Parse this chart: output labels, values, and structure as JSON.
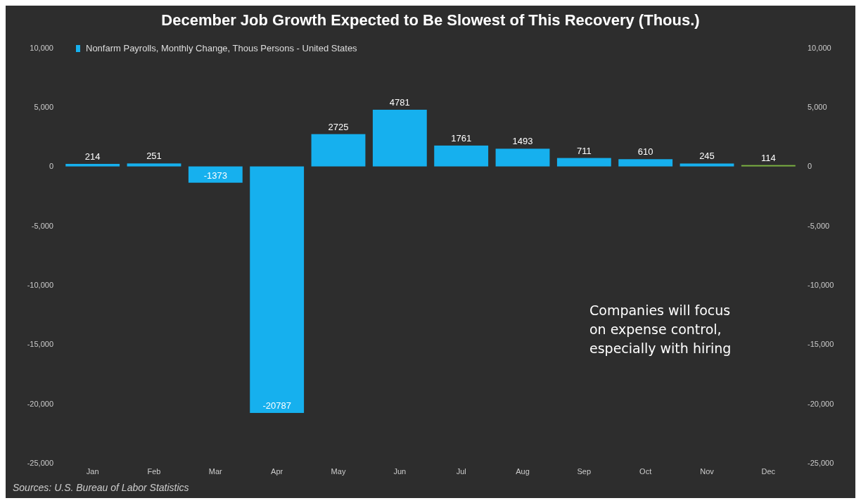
{
  "chart_data": {
    "type": "bar",
    "title": "December Job Growth Expected to Be Slowest of This Recovery (Thous.)",
    "categories": [
      "Jan",
      "Feb",
      "Mar",
      "Apr",
      "May",
      "Jun",
      "Jul",
      "Aug",
      "Sep",
      "Oct",
      "Nov",
      "Dec"
    ],
    "series": [
      {
        "name": "Nonfarm Payrolls, Monthly Change, Thous Persons - United States",
        "color": "#16b0ee",
        "values": [
          214,
          251,
          -1373,
          -20787,
          2725,
          4781,
          1761,
          1493,
          711,
          610,
          245,
          114
        ],
        "colors": [
          "#16b0ee",
          "#16b0ee",
          "#16b0ee",
          "#16b0ee",
          "#16b0ee",
          "#16b0ee",
          "#16b0ee",
          "#16b0ee",
          "#16b0ee",
          "#16b0ee",
          "#16b0ee",
          "#7cb342"
        ]
      }
    ],
    "ylim": [
      -25000,
      10000
    ],
    "yticks": [
      {
        "value": -25000,
        "label": "-25,000"
      },
      {
        "value": -20000,
        "label": "-20,000"
      },
      {
        "value": -15000,
        "label": "-15,000"
      },
      {
        "value": -10000,
        "label": "-10,000"
      },
      {
        "value": -5000,
        "label": "-5,000"
      },
      0,
      {
        "value": 5000,
        "label": "5,000"
      },
      {
        "value": 10000,
        "label": "10,000"
      }
    ],
    "y2lim": [
      -25000,
      10000
    ],
    "y2ticks": [
      {
        "value": -25000,
        "label": "-25,000"
      },
      {
        "value": -20000,
        "label": "-20,000"
      },
      {
        "value": -15000,
        "label": "-15,000"
      },
      {
        "value": -10000,
        "label": "-10,000"
      },
      {
        "value": -5000,
        "label": "-5,000"
      },
      0,
      {
        "value": 5000,
        "label": "5,000"
      },
      {
        "value": 10000,
        "label": "10,000"
      }
    ],
    "data_labels": true,
    "legend": "top left",
    "annotations": [
      "Companies will focus on expense control, especially with hiring",
      "Sources: U.S. Bureau of Labor Statistics"
    ]
  }
}
